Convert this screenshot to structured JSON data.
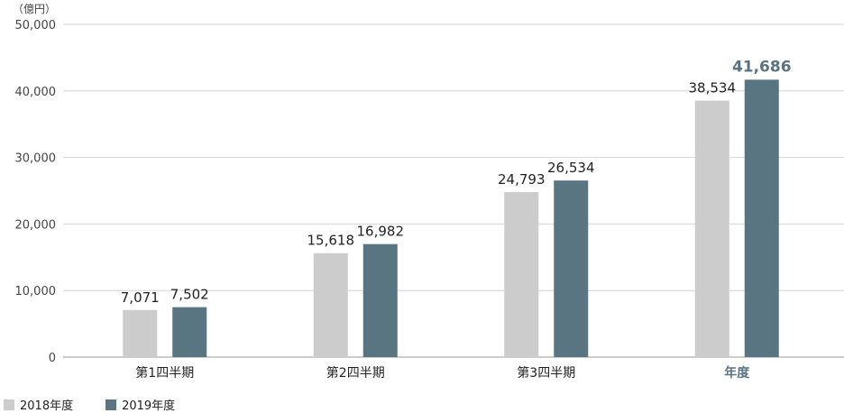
{
  "chart_data": {
    "type": "bar",
    "unit_label": "（億円）",
    "categories": [
      "第1四半期",
      "第2四半期",
      "第3四半期",
      "年度"
    ],
    "highlight_category": "年度",
    "ylim": [
      0,
      50000
    ],
    "yticks": [
      0,
      10000,
      20000,
      30000,
      40000,
      50000
    ],
    "ytick_labels": [
      "0",
      "10,000",
      "20,000",
      "30,000",
      "40,000",
      "50,000"
    ],
    "grid": true,
    "legend_position": "bottom-left",
    "series": [
      {
        "name": "2018年度",
        "color": "#cccccc",
        "values": [
          7071,
          15618,
          24793,
          38534
        ],
        "labels": [
          "7,071",
          "15,618",
          "24,793",
          "38,534"
        ]
      },
      {
        "name": "2019年度",
        "color": "#5a7582",
        "values": [
          7502,
          16982,
          26534,
          41686
        ],
        "labels": [
          "7,502",
          "16,982",
          "26,534",
          "41,686"
        ]
      }
    ]
  }
}
